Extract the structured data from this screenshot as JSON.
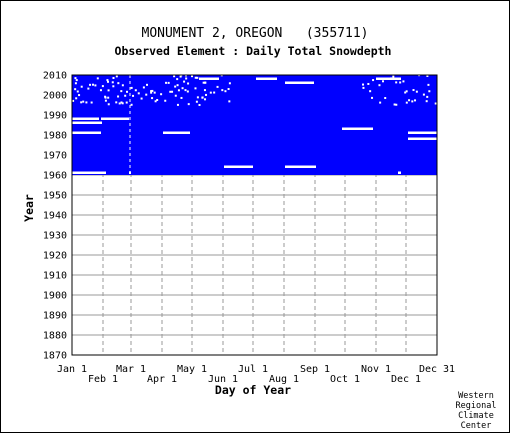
{
  "chart_data": {
    "type": "heatmap",
    "title": "MONUMENT 2, OREGON   (355711)",
    "subtitle": "Observed Element : Daily Total Snowdepth",
    "xlabel": "Day of Year",
    "ylabel": "Year",
    "x_ticks_upper": [
      "Jan 1",
      "Mar 1",
      "May 1",
      "Jul 1",
      "Sep 1",
      "Nov 1",
      "Dec 31"
    ],
    "x_ticks_lower": [
      "Feb 1",
      "Apr 1",
      "Jun 1",
      "Aug 1",
      "Oct 1",
      "Dec 1"
    ],
    "y_ticks": [
      "2010",
      "2000",
      "1990",
      "1980",
      "1970",
      "1960",
      "1950",
      "1940",
      "1930",
      "1920",
      "1910",
      "1900",
      "1890",
      "1880",
      "1870"
    ],
    "ylim": [
      1870,
      2010
    ],
    "xlim": [
      1,
      366
    ],
    "grid": true,
    "data_color": "#0000ff",
    "data_coverage": {
      "year_start": 1960,
      "year_end": 2010,
      "day_start": 1,
      "day_end": 366
    },
    "missing_segments": [
      {
        "year": 1961,
        "day_start": 1,
        "day_end": 35
      },
      {
        "year": 1961,
        "day_start": 58,
        "day_end": 60
      },
      {
        "year": 1964,
        "day_start": 153,
        "day_end": 182
      },
      {
        "year": 1964,
        "day_start": 214,
        "day_end": 245
      },
      {
        "year": 1961,
        "day_start": 327,
        "day_end": 330
      },
      {
        "year": 1978,
        "day_start": 337,
        "day_end": 366
      },
      {
        "year": 1981,
        "day_start": 1,
        "day_end": 30
      },
      {
        "year": 1981,
        "day_start": 92,
        "day_end": 119
      },
      {
        "year": 1981,
        "day_start": 337,
        "day_end": 366
      },
      {
        "year": 1983,
        "day_start": 271,
        "day_end": 302
      },
      {
        "year": 1986,
        "day_start": 1,
        "day_end": 30
      },
      {
        "year": 1988,
        "day_start": 30,
        "day_end": 58
      },
      {
        "year": 1988,
        "day_start": 1,
        "day_end": 28
      },
      {
        "year": 1986,
        "day_start": 28,
        "day_end": 31
      },
      {
        "year": 2006,
        "day_start": 214,
        "day_end": 243
      },
      {
        "year": 2008,
        "day_start": 185,
        "day_end": 206
      },
      {
        "year": 2008,
        "day_start": 128,
        "day_end": 148
      },
      {
        "year": 2008,
        "day_start": 305,
        "day_end": 330
      }
    ],
    "missing_day_line": {
      "day": 59,
      "year_start": 1960,
      "year_end": 2010
    }
  },
  "credit": [
    "Western",
    "Regional",
    "Climate",
    "Center"
  ]
}
